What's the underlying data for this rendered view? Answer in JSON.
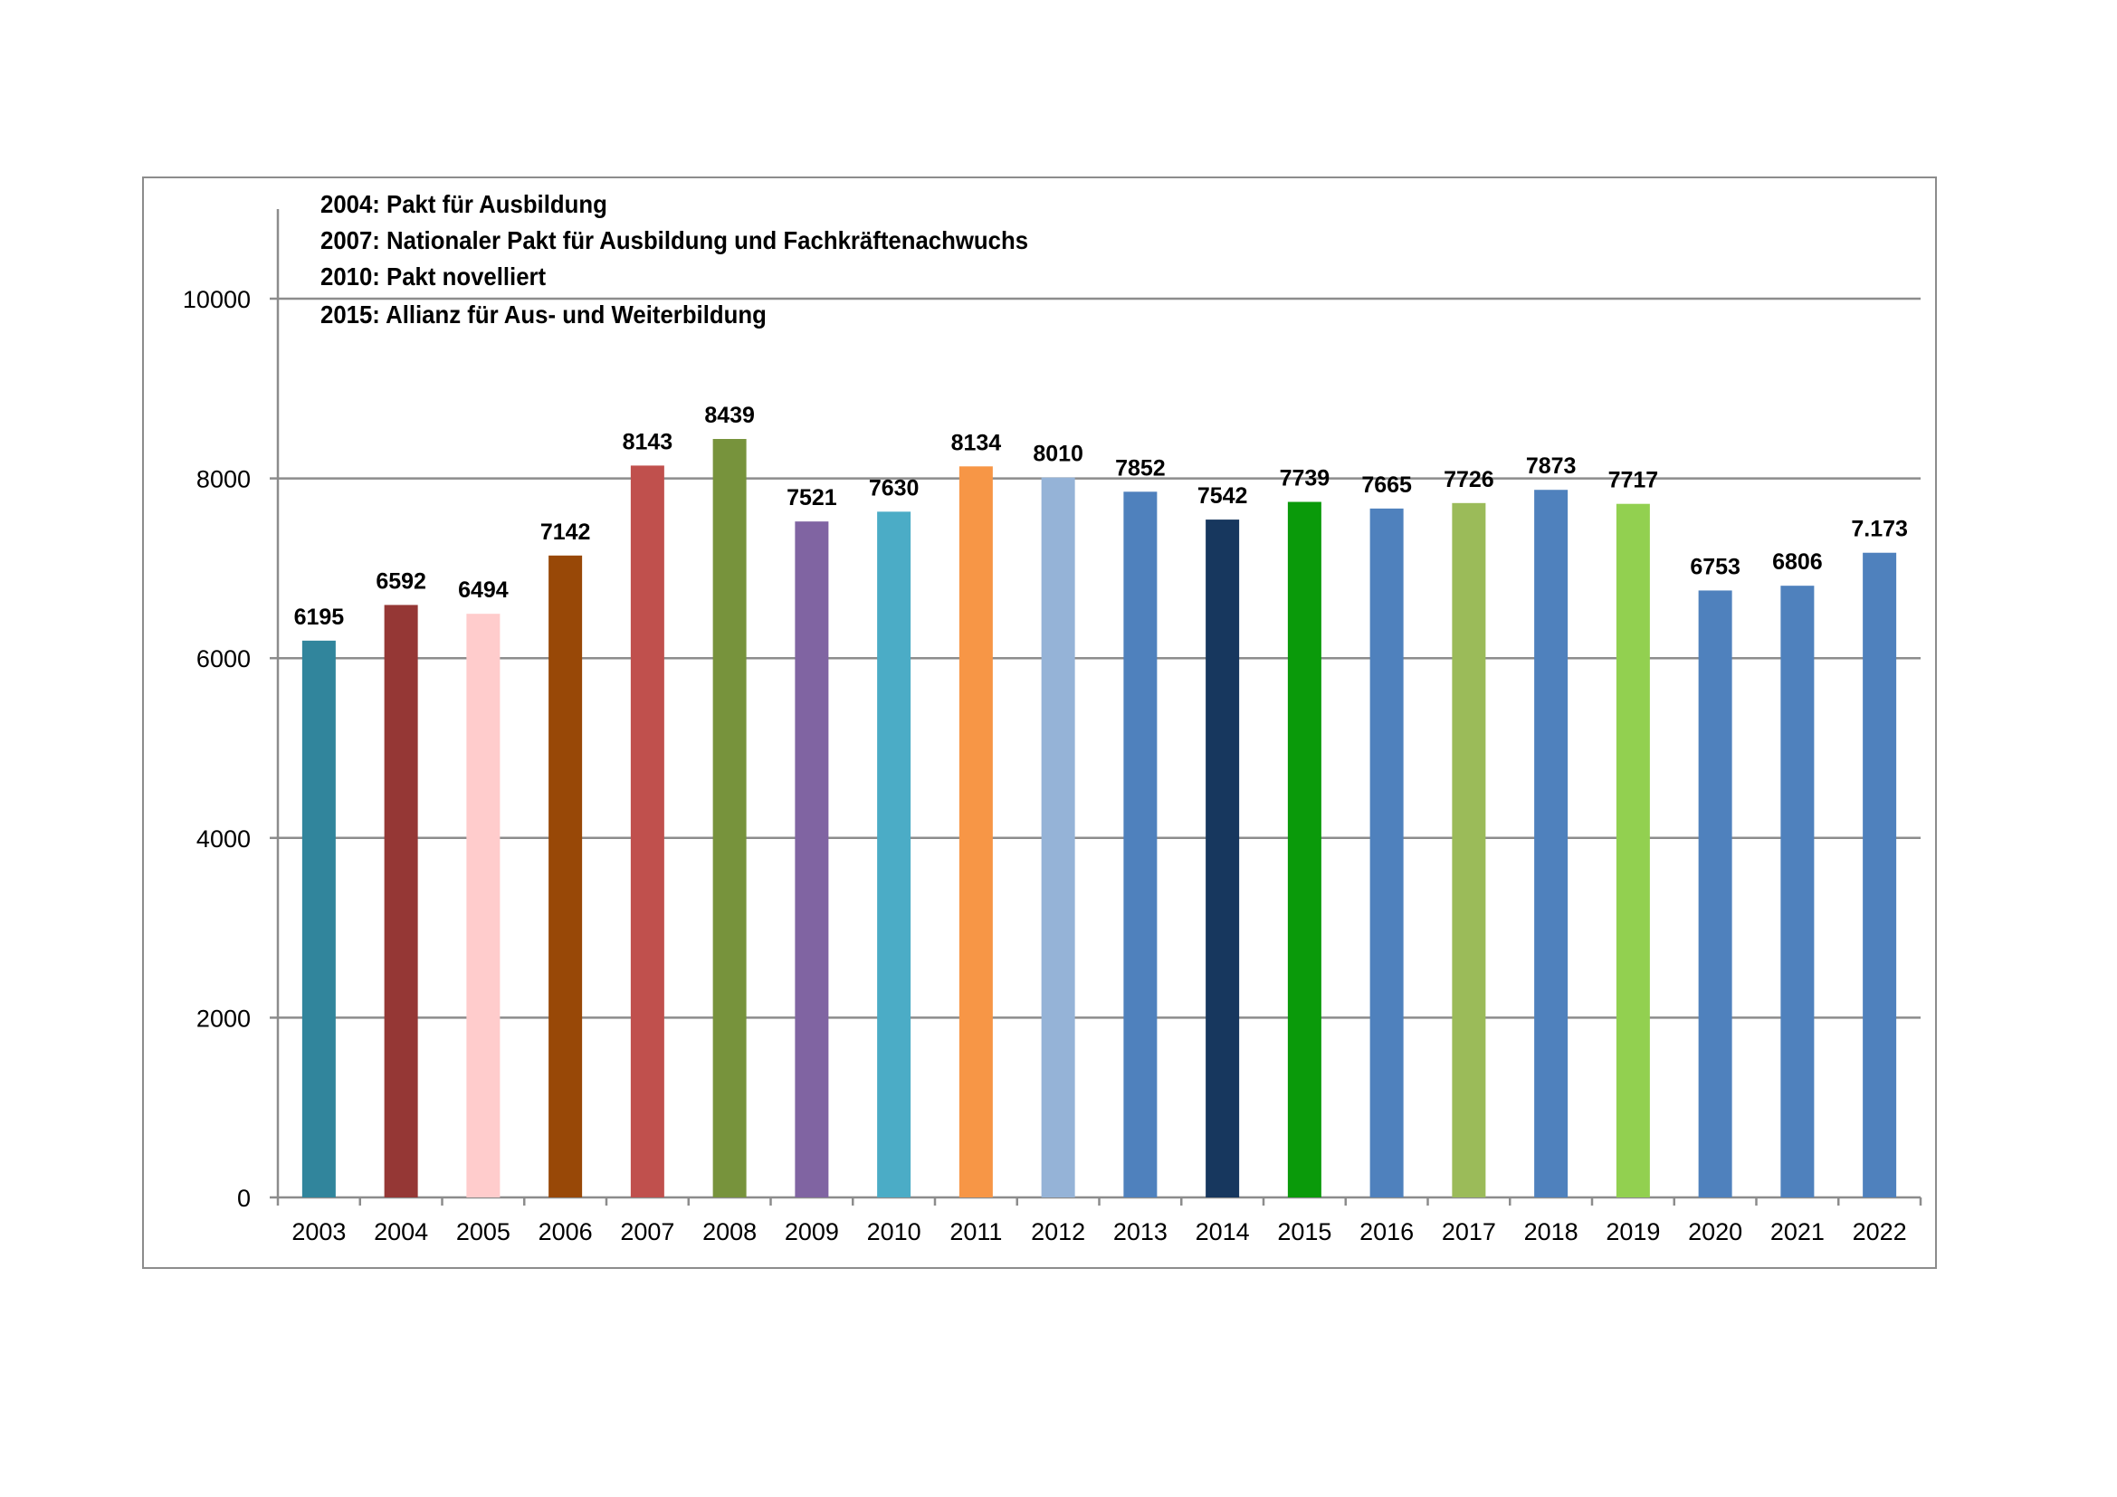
{
  "chart_data": {
    "type": "bar",
    "title": "",
    "xlabel": "",
    "ylabel": "",
    "ylim": [
      0,
      10000
    ],
    "yticks": [
      0,
      2000,
      4000,
      6000,
      8000,
      10000
    ],
    "grid": true,
    "categories": [
      "2003",
      "2004",
      "2005",
      "2006",
      "2007",
      "2008",
      "2009",
      "2010",
      "2011",
      "2012",
      "2013",
      "2014",
      "2015",
      "2016",
      "2017",
      "2018",
      "2019",
      "2020",
      "2021",
      "2022"
    ],
    "values": [
      6195,
      6592,
      6494,
      7142,
      8143,
      8439,
      7521,
      7630,
      8134,
      8010,
      7852,
      7542,
      7739,
      7665,
      7726,
      7873,
      7717,
      6753,
      6806,
      7173
    ],
    "data_labels": [
      "6195",
      "6592",
      "6494",
      "7142",
      "8143",
      "8439",
      "7521",
      "7630",
      "8134",
      "8010",
      "7852",
      "7542",
      "7739",
      "7665",
      "7726",
      "7873",
      "7717",
      "6753",
      "6806",
      "7.173"
    ],
    "colors": [
      "#31859c",
      "#953735",
      "#ffcccc",
      "#984807",
      "#c0504d",
      "#77933c",
      "#8064a2",
      "#4bacc6",
      "#f79646",
      "#95b3d7",
      "#4f81bd",
      "#17375e",
      "#0a9a0a",
      "#4f81bd",
      "#9bbb59",
      "#4f81bd",
      "#92d050",
      "#4f81bd",
      "#4f81bd",
      "#4f81bd"
    ],
    "annotations": [
      "2004: Pakt für Ausbildung",
      "2007: Nationaler Pakt für Ausbildung und Fachkräftenachwuchs",
      "2010: Pakt novelliert",
      "2015: Allianz für Aus- und Weiterbildung"
    ]
  }
}
